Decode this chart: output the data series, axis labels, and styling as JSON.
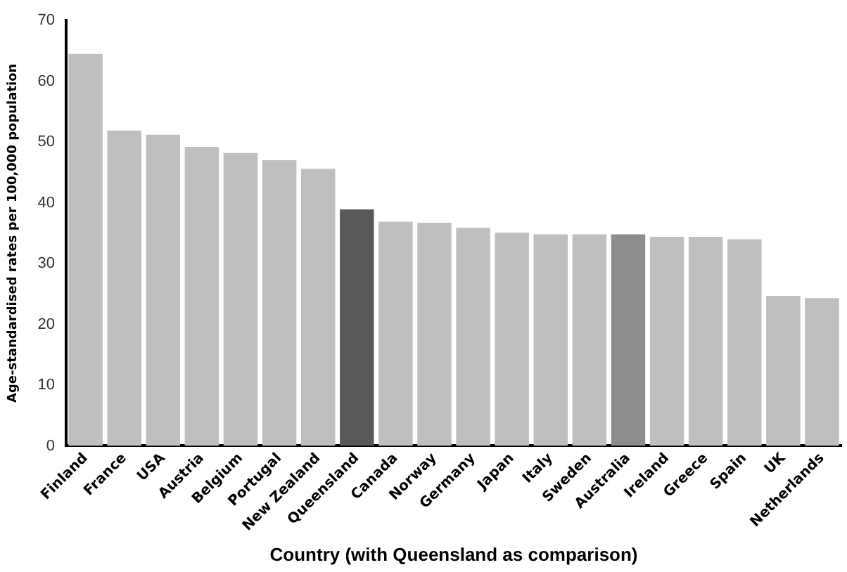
{
  "chart_data": {
    "type": "bar",
    "xlabel": "Country (with Queensland as comparison)",
    "ylabel": "Age-standardised rates per 100,000 population",
    "categories": [
      "Finland",
      "France",
      "USA",
      "Austria",
      "Belgium",
      "Portugal",
      "New Zealand",
      "Queensland",
      "Canada",
      "Norway",
      "Germany",
      "Japan",
      "Italy",
      "Sweden",
      "Australia",
      "Ireland",
      "Greece",
      "Spain",
      "UK",
      "Netherlands"
    ],
    "values": [
      64.5,
      51.9,
      51.2,
      49.2,
      48.2,
      47.0,
      45.6,
      38.9,
      36.9,
      36.7,
      35.9,
      35.1,
      34.8,
      34.8,
      34.8,
      34.4,
      34.4,
      34.0,
      24.7,
      24.3
    ],
    "colors": [
      "#bfbfbf",
      "#bfbfbf",
      "#bfbfbf",
      "#bfbfbf",
      "#bfbfbf",
      "#bfbfbf",
      "#bfbfbf",
      "#595959",
      "#bfbfbf",
      "#bfbfbf",
      "#bfbfbf",
      "#bfbfbf",
      "#bfbfbf",
      "#bfbfbf",
      "#8c8c8c",
      "#bfbfbf",
      "#bfbfbf",
      "#bfbfbf",
      "#bfbfbf",
      "#bfbfbf"
    ],
    "ylim": [
      0,
      70
    ],
    "yticks": [
      0,
      10,
      20,
      30,
      40,
      50,
      60,
      70
    ],
    "grid": false,
    "legend": false
  }
}
